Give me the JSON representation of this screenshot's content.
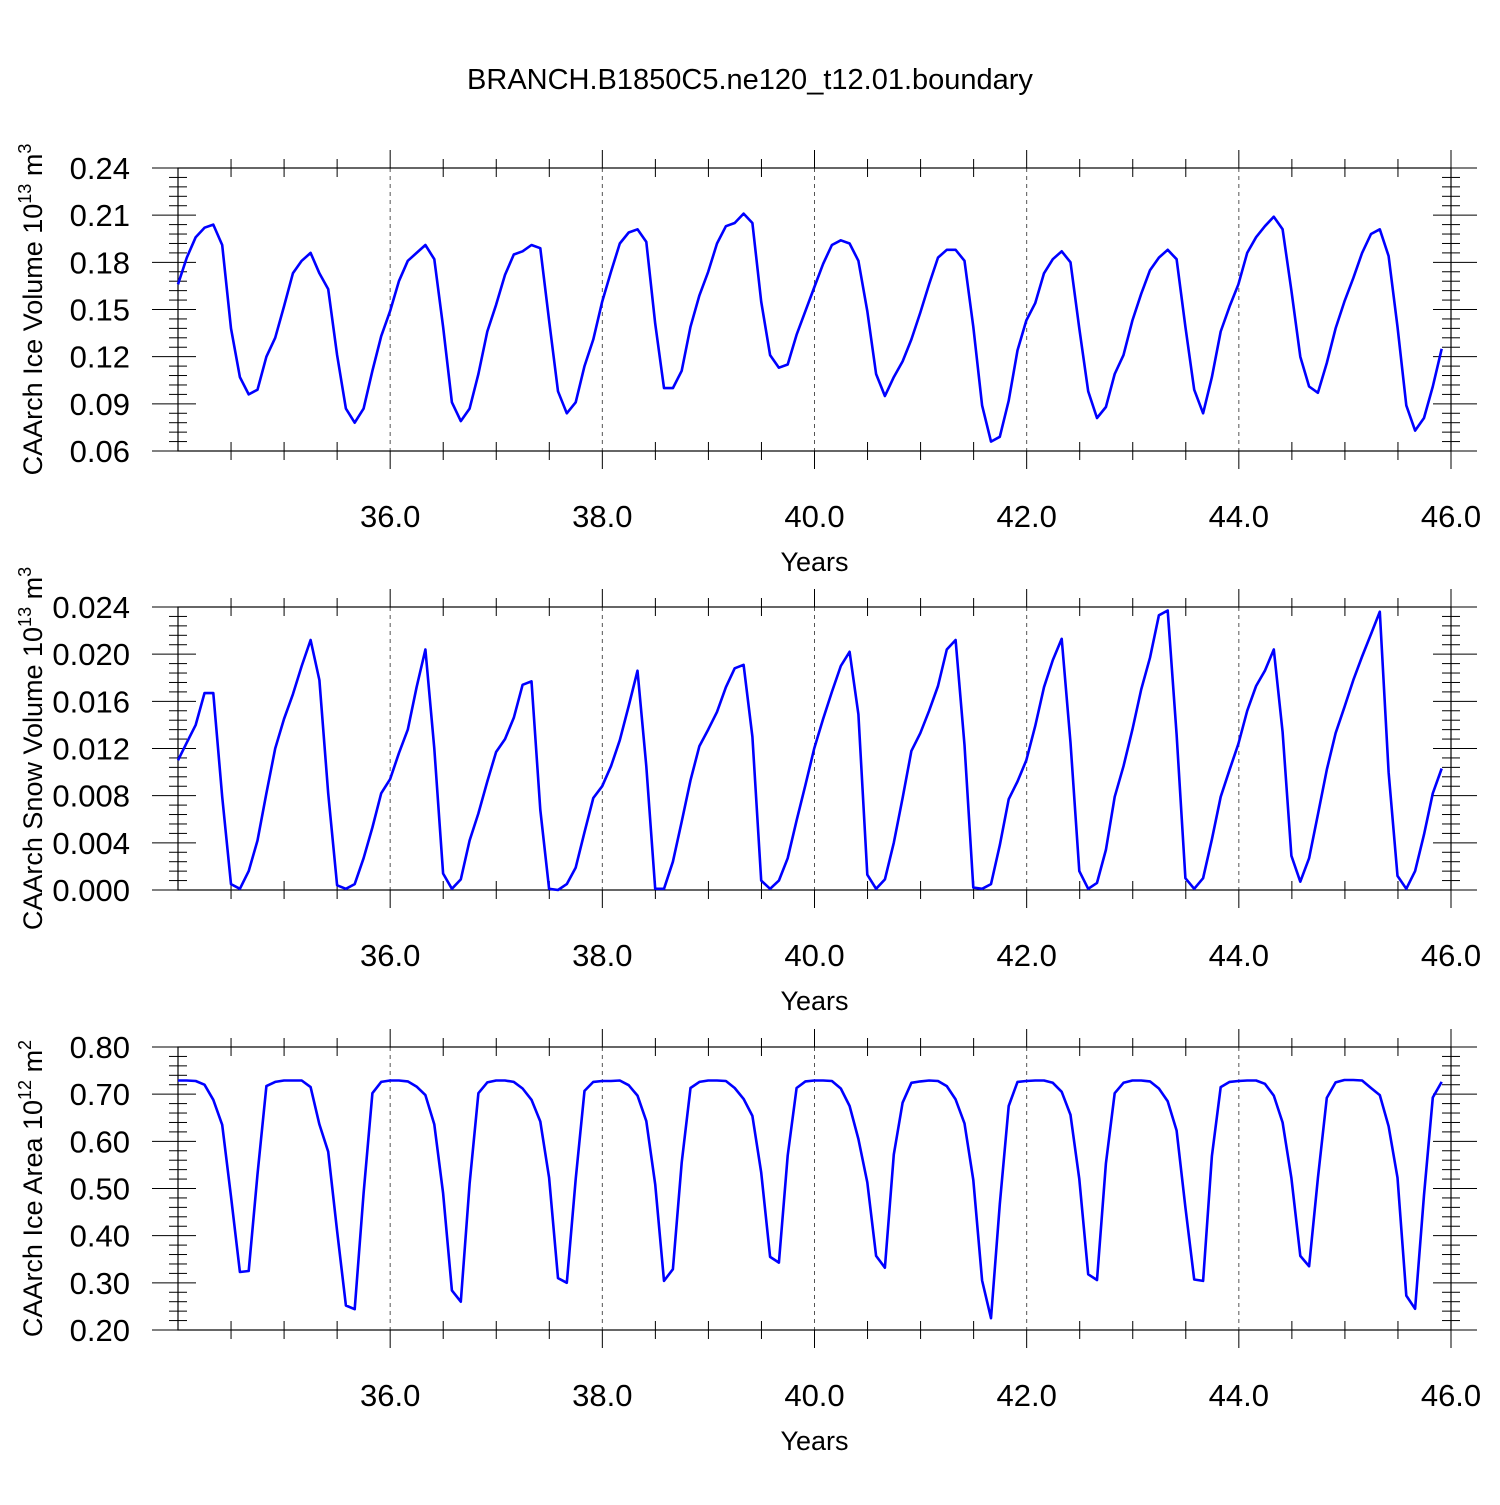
{
  "figure": {
    "title": "BRANCH.B1850C5.ne120_t12.01.boundary",
    "line_color": "#0000ff"
  },
  "chart_data": [
    {
      "type": "line",
      "title": "",
      "xlabel": "Years",
      "ylabel": {
        "text": "CAArch Ice Volume 10",
        "sup1": "13",
        "unit": " m",
        "sup2": "3"
      },
      "xlim": [
        34.0,
        46.0
      ],
      "ylim": [
        0.06,
        0.24
      ],
      "xticks": [
        36.0,
        38.0,
        40.0,
        42.0,
        44.0,
        46.0
      ],
      "xtick_labels": [
        "36.0",
        "38.0",
        "40.0",
        "42.0",
        "44.0",
        "46.0"
      ],
      "yticks": [
        0.06,
        0.09,
        0.12,
        0.15,
        0.18,
        0.21,
        0.24
      ],
      "ytick_labels": [
        "0.06",
        "0.09",
        "0.12",
        "0.15",
        "0.18",
        "0.21",
        "0.24"
      ],
      "grid": "vertical dashed at major x ticks",
      "x_start": 34.0,
      "x_step": 0.0833,
      "values": [
        0.166,
        0.183,
        0.196,
        0.202,
        0.204,
        0.191,
        0.138,
        0.107,
        0.096,
        0.099,
        0.12,
        0.132,
        0.152,
        0.173,
        0.181,
        0.186,
        0.173,
        0.163,
        0.121,
        0.087,
        0.078,
        0.087,
        0.111,
        0.133,
        0.149,
        0.168,
        0.181,
        0.186,
        0.191,
        0.182,
        0.139,
        0.091,
        0.079,
        0.087,
        0.109,
        0.136,
        0.153,
        0.172,
        0.185,
        0.187,
        0.191,
        0.189,
        0.143,
        0.098,
        0.084,
        0.091,
        0.114,
        0.131,
        0.155,
        0.174,
        0.192,
        0.199,
        0.201,
        0.193,
        0.141,
        0.1,
        0.1,
        0.111,
        0.139,
        0.159,
        0.174,
        0.192,
        0.203,
        0.205,
        0.211,
        0.205,
        0.155,
        0.121,
        0.113,
        0.115,
        0.134,
        0.149,
        0.164,
        0.179,
        0.191,
        0.194,
        0.192,
        0.181,
        0.149,
        0.109,
        0.095,
        0.107,
        0.117,
        0.131,
        0.148,
        0.166,
        0.183,
        0.188,
        0.188,
        0.181,
        0.139,
        0.089,
        0.066,
        0.069,
        0.092,
        0.124,
        0.143,
        0.154,
        0.173,
        0.182,
        0.187,
        0.18,
        0.138,
        0.098,
        0.081,
        0.088,
        0.109,
        0.121,
        0.143,
        0.16,
        0.175,
        0.183,
        0.188,
        0.182,
        0.139,
        0.099,
        0.084,
        0.107,
        0.136,
        0.152,
        0.166,
        0.186,
        0.196,
        0.203,
        0.209,
        0.201,
        0.162,
        0.12,
        0.101,
        0.097,
        0.116,
        0.138,
        0.155,
        0.17,
        0.186,
        0.198,
        0.201,
        0.184,
        0.139,
        0.089,
        0.073,
        0.081,
        0.101,
        0.125
      ]
    },
    {
      "type": "line",
      "title": "",
      "xlabel": "Years",
      "ylabel": {
        "text": "CAArch Snow Volume 10",
        "sup1": "13",
        "unit": " m",
        "sup2": "3"
      },
      "xlim": [
        34.0,
        46.0
      ],
      "ylim": [
        0.0,
        0.024
      ],
      "xticks": [
        36.0,
        38.0,
        40.0,
        42.0,
        44.0,
        46.0
      ],
      "xtick_labels": [
        "36.0",
        "38.0",
        "40.0",
        "42.0",
        "44.0",
        "46.0"
      ],
      "yticks": [
        0.0,
        0.004,
        0.008,
        0.012,
        0.016,
        0.02,
        0.024
      ],
      "ytick_labels": [
        "0.000",
        "0.004",
        "0.008",
        "0.012",
        "0.016",
        "0.020",
        "0.024"
      ],
      "grid": "vertical dashed at major x ticks",
      "x_start": 34.0,
      "x_step": 0.0833,
      "values": [
        0.011,
        0.0125,
        0.014,
        0.0167,
        0.0167,
        0.0079,
        0.0005,
        0.0001,
        0.0016,
        0.0042,
        0.0082,
        0.012,
        0.0145,
        0.0166,
        0.019,
        0.0212,
        0.0178,
        0.0082,
        0.0004,
        0.0001,
        0.0005,
        0.0027,
        0.0053,
        0.0082,
        0.0094,
        0.0116,
        0.0136,
        0.0172,
        0.0204,
        0.012,
        0.0014,
        0.0001,
        0.0009,
        0.0042,
        0.0065,
        0.0092,
        0.0117,
        0.0128,
        0.0146,
        0.0174,
        0.0177,
        0.0068,
        0.0001,
        0.0,
        0.0005,
        0.0019,
        0.0049,
        0.0078,
        0.0088,
        0.0105,
        0.0127,
        0.0156,
        0.0186,
        0.0105,
        0.0001,
        0.0001,
        0.0024,
        0.0058,
        0.0093,
        0.0122,
        0.0136,
        0.0151,
        0.0172,
        0.0188,
        0.0191,
        0.013,
        0.0008,
        0.0001,
        0.0008,
        0.0027,
        0.0059,
        0.0089,
        0.012,
        0.0145,
        0.0168,
        0.019,
        0.0202,
        0.0149,
        0.0013,
        0.0001,
        0.0009,
        0.004,
        0.0078,
        0.0118,
        0.0133,
        0.0152,
        0.0173,
        0.0204,
        0.0212,
        0.0123,
        0.0002,
        0.0001,
        0.0005,
        0.0038,
        0.0077,
        0.0092,
        0.011,
        0.0139,
        0.0172,
        0.0195,
        0.0213,
        0.0125,
        0.0016,
        0.0001,
        0.0006,
        0.0034,
        0.0079,
        0.0105,
        0.0136,
        0.017,
        0.0197,
        0.0233,
        0.0237,
        0.0132,
        0.001,
        0.0001,
        0.001,
        0.0043,
        0.0079,
        0.0102,
        0.0124,
        0.0152,
        0.0173,
        0.0186,
        0.0204,
        0.0134,
        0.0029,
        0.0007,
        0.0027,
        0.0064,
        0.0102,
        0.0133,
        0.0155,
        0.0178,
        0.0198,
        0.0217,
        0.0236,
        0.01,
        0.0012,
        0.0001,
        0.0016,
        0.0047,
        0.0082,
        0.0103
      ]
    },
    {
      "type": "line",
      "title": "",
      "xlabel": "Years",
      "ylabel": {
        "text": "CAArch Ice Area 10",
        "sup1": "12",
        "unit": " m",
        "sup2": "2"
      },
      "xlim": [
        34.0,
        46.0
      ],
      "ylim": [
        0.2,
        0.8
      ],
      "xticks": [
        36.0,
        38.0,
        40.0,
        42.0,
        44.0,
        46.0
      ],
      "xtick_labels": [
        "36.0",
        "38.0",
        "40.0",
        "42.0",
        "44.0",
        "46.0"
      ],
      "yticks": [
        0.2,
        0.3,
        0.4,
        0.5,
        0.6,
        0.7,
        0.8
      ],
      "ytick_labels": [
        "0.20",
        "0.30",
        "0.40",
        "0.50",
        "0.60",
        "0.70",
        "0.80"
      ],
      "grid": "vertical dashed at major x ticks",
      "x_start": 34.0,
      "x_step": 0.0833,
      "values": [
        0.729,
        0.729,
        0.728,
        0.72,
        0.688,
        0.635,
        0.483,
        0.323,
        0.325,
        0.53,
        0.717,
        0.726,
        0.729,
        0.729,
        0.729,
        0.715,
        0.636,
        0.578,
        0.41,
        0.252,
        0.244,
        0.49,
        0.702,
        0.726,
        0.729,
        0.729,
        0.727,
        0.716,
        0.698,
        0.636,
        0.49,
        0.284,
        0.26,
        0.51,
        0.702,
        0.725,
        0.729,
        0.729,
        0.726,
        0.712,
        0.688,
        0.642,
        0.523,
        0.31,
        0.3,
        0.52,
        0.707,
        0.726,
        0.728,
        0.728,
        0.729,
        0.719,
        0.697,
        0.643,
        0.509,
        0.304,
        0.329,
        0.555,
        0.713,
        0.726,
        0.729,
        0.729,
        0.728,
        0.713,
        0.69,
        0.654,
        0.534,
        0.355,
        0.343,
        0.57,
        0.713,
        0.727,
        0.729,
        0.729,
        0.728,
        0.712,
        0.675,
        0.605,
        0.513,
        0.357,
        0.332,
        0.572,
        0.682,
        0.724,
        0.727,
        0.729,
        0.728,
        0.717,
        0.689,
        0.638,
        0.518,
        0.305,
        0.225,
        0.467,
        0.675,
        0.726,
        0.728,
        0.729,
        0.729,
        0.724,
        0.705,
        0.656,
        0.52,
        0.318,
        0.306,
        0.553,
        0.702,
        0.724,
        0.729,
        0.729,
        0.727,
        0.712,
        0.685,
        0.623,
        0.46,
        0.307,
        0.304,
        0.569,
        0.715,
        0.726,
        0.728,
        0.729,
        0.729,
        0.722,
        0.697,
        0.64,
        0.522,
        0.357,
        0.335,
        0.522,
        0.692,
        0.725,
        0.73,
        0.73,
        0.729,
        0.713,
        0.698,
        0.632,
        0.523,
        0.273,
        0.245,
        0.486,
        0.693,
        0.726
      ]
    }
  ]
}
